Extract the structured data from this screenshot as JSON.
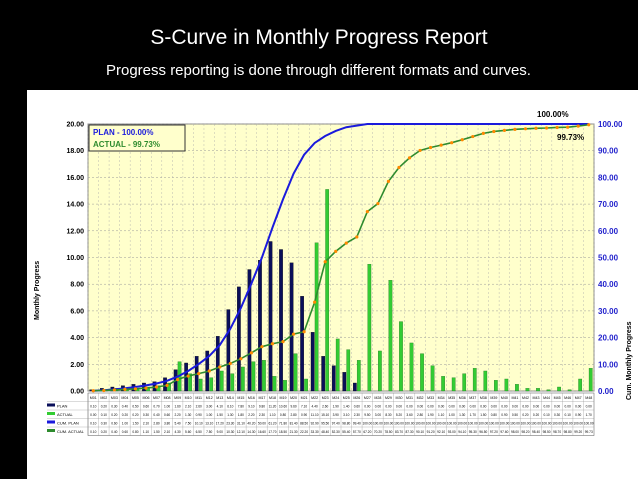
{
  "slide": {
    "title": "S-Curve in Monthly Progress Report",
    "subtitle": "Progress reporting is done through different formats and curves."
  },
  "chart_data": {
    "type": "bar",
    "ylabel": "Monthly Progress",
    "y2label": "Cum. Monthly Progress",
    "ylim": [
      0,
      20
    ],
    "y2lim": [
      0,
      100
    ],
    "yticks": [
      "0.00",
      "2.00",
      "4.00",
      "6.00",
      "8.00",
      "10.00",
      "12.00",
      "14.00",
      "16.00",
      "18.00",
      "20.00"
    ],
    "y2ticks": [
      "0.00",
      "10.00",
      "20.00",
      "30.00",
      "40.00",
      "50.00",
      "60.00",
      "70.00",
      "80.00",
      "90.00",
      "100.00"
    ],
    "categories": [
      "M01",
      "M02",
      "M03",
      "M04",
      "M05",
      "M06",
      "M07",
      "M08",
      "M09",
      "M10",
      "M11",
      "M12",
      "M13",
      "M14",
      "M15",
      "M16",
      "M17",
      "M18",
      "M19",
      "M20",
      "M21",
      "M22",
      "M23",
      "M24",
      "M25",
      "M26",
      "M27",
      "M28",
      "M29",
      "M30",
      "M31",
      "M32",
      "M33",
      "M34",
      "M35",
      "M36",
      "M37",
      "M38",
      "M39",
      "M40",
      "M41",
      "M42",
      "M43",
      "M44",
      "M45",
      "M46",
      "M47",
      "M48"
    ],
    "legend_box": {
      "plan_label": "PLAN  -  100.00%",
      "actual_label": "ACTUAL  -  99.73%"
    },
    "end_labels": {
      "plan": "100.00%",
      "actual": "99.73%"
    },
    "series": [
      {
        "name": "PLAN",
        "kind": "bar",
        "color": "#0a0f5a",
        "values": [
          0.1,
          0.2,
          0.3,
          0.4,
          0.5,
          0.6,
          0.7,
          1.0,
          1.6,
          2.1,
          2.6,
          3.0,
          4.1,
          6.1,
          7.8,
          9.1,
          9.8,
          11.2,
          10.6,
          9.6,
          7.1,
          4.4,
          2.6,
          1.9,
          1.4,
          0.6,
          0,
          0,
          0,
          0,
          0,
          0,
          0,
          0,
          0,
          0,
          0,
          0,
          0,
          0,
          0,
          0,
          0,
          0,
          0,
          0,
          0,
          0
        ]
      },
      {
        "name": "ACTUAL",
        "kind": "bar",
        "color": "#33cc33",
        "values": [
          0,
          0.1,
          0.2,
          0.2,
          0.2,
          0.3,
          0.4,
          0.6,
          2.2,
          1.3,
          0.9,
          1.0,
          1.5,
          1.3,
          1.8,
          2.2,
          2.3,
          1.1,
          0.8,
          2.8,
          0.9,
          11.1,
          15.1,
          3.9,
          3.1,
          2.3,
          9.5,
          3.0,
          8.3,
          5.2,
          3.6,
          2.8,
          1.9,
          1.1,
          1.0,
          1.3,
          1.7,
          1.5,
          0.8,
          0.9,
          0.5,
          0.2,
          0.2,
          0.1,
          0.3,
          0.1,
          0.9,
          1.7
        ]
      },
      {
        "name": "CUM. PLAN",
        "kind": "line",
        "color": "#1a1adc",
        "values": [
          0.1,
          0.3,
          0.6,
          1.0,
          1.5,
          2.1,
          2.8,
          3.8,
          5.4,
          7.5,
          10.1,
          13.1,
          17.2,
          23.3,
          31.1,
          40.2,
          50.0,
          61.2,
          71.8,
          81.4,
          88.5,
          92.9,
          95.5,
          97.4,
          98.8,
          99.4,
          100,
          100,
          100,
          100,
          100,
          100,
          100,
          100,
          100,
          100,
          100,
          100,
          100,
          100,
          100,
          100,
          100,
          100,
          100,
          100,
          100,
          100
        ]
      },
      {
        "name": "CUM. ACTUAL",
        "kind": "line",
        "color": "#2e8b2e",
        "marker_color": "#ff8800",
        "values": [
          0.1,
          0.2,
          0.4,
          0.6,
          0.8,
          1.1,
          1.5,
          2.1,
          4.3,
          5.6,
          6.5,
          7.5,
          9.0,
          10.3,
          12.1,
          14.3,
          16.6,
          17.7,
          18.5,
          21.3,
          22.2,
          33.3,
          48.4,
          52.3,
          55.4,
          57.7,
          67.2,
          70.2,
          78.5,
          83.7,
          87.3,
          90.1,
          91.2,
          92.1,
          93.0,
          94.1,
          95.3,
          96.5,
          97.2,
          97.6,
          98.0,
          98.2,
          98.4,
          98.5,
          98.7,
          98.8,
          99.2,
          99.73
        ]
      }
    ],
    "table_row_labels": [
      "PLAN",
      "ACTUAL",
      "CUM. PLAN",
      "CUM. ACTUAL"
    ],
    "grid": true,
    "legend": "top-left"
  }
}
